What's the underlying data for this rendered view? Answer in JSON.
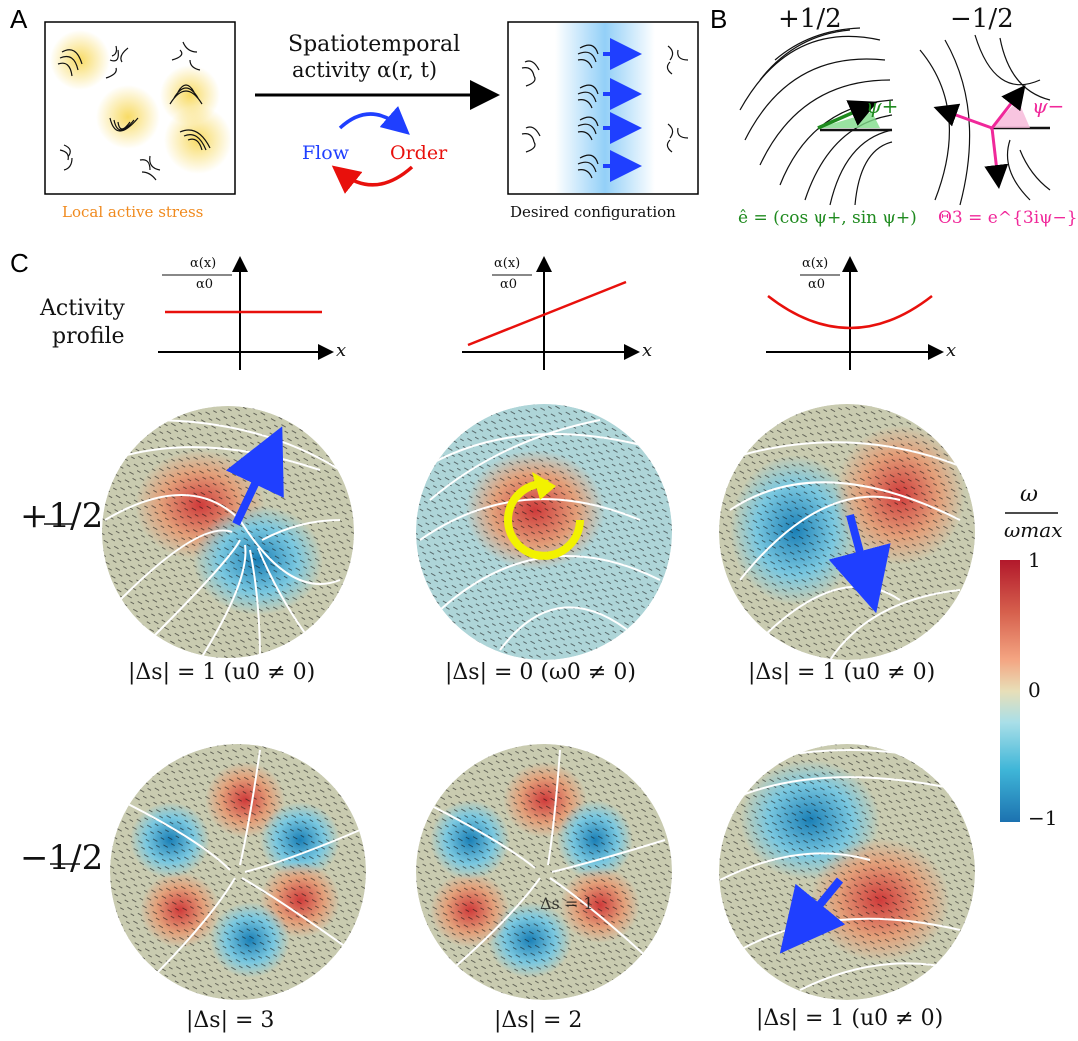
{
  "panels": {
    "a": "A",
    "b": "B",
    "c": "C"
  },
  "panel_a": {
    "arrow_title_line1": "Spatiotemporal",
    "arrow_title_line2": "activity α(r, t)",
    "flow": "Flow",
    "order": "Order",
    "left_caption": "Local active stress",
    "right_caption": "Desired configuration"
  },
  "panel_b": {
    "plus_label": "+1/2",
    "minus_label": "−1/2",
    "psi_plus": "ψ+",
    "psi_minus": "ψ−",
    "plus_formula": "ê = (cos ψ+, sin ψ+)",
    "minus_formula": "Θ3 = e^{3iψ−}"
  },
  "panel_c": {
    "activity_profile_line1": "Activity",
    "activity_profile_line2": "profile",
    "axis_ylabel_num": "α(x)",
    "axis_ylabel_den": "α0",
    "axis_xlabel": "x",
    "profiles": [
      "constant",
      "linear",
      "parabolic"
    ],
    "row_plus_label": "+1/2",
    "row_minus_label": "−1/2",
    "captions_plus": [
      "|Δs| = 1 (u0 ≠ 0)",
      "|Δs| = 0 (ω0 ≠ 0)",
      "|Δs| = 1 (u0 ≠ 0)"
    ],
    "captions_minus": [
      "|Δs| = 3",
      "|Δs| = 2",
      "|Δs| = 1 (u0 ≠ 0)"
    ],
    "overlay_text": "Δs  = 1"
  },
  "colorbar": {
    "label_num": "ω",
    "label_den": "ωmax",
    "ticks": [
      "1",
      "0",
      "−1"
    ],
    "colors": [
      "#b2182b",
      "#d6604d",
      "#f4a582",
      "#e8d8a8",
      "#a9dfe8",
      "#3fb6d8",
      "#1c7fb8"
    ]
  },
  "colors": {
    "blue": "#1f3fff",
    "red": "#e8100c",
    "green": "#1f8a1f",
    "magenta": "#f0289a",
    "yellow": "#f2f200",
    "orange": "#f08a1e"
  }
}
